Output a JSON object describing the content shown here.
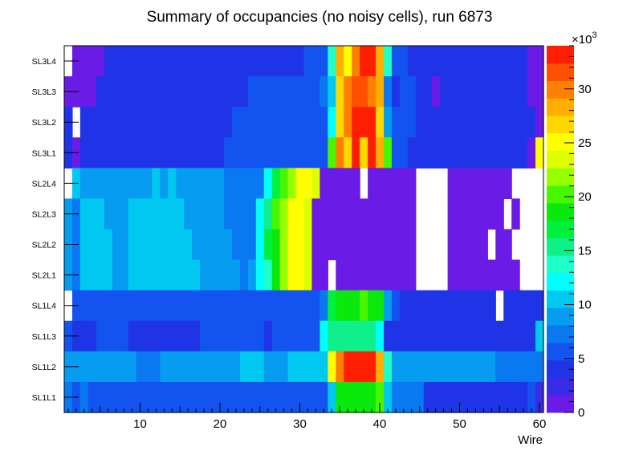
{
  "chart_data": {
    "type": "heatmap",
    "title": "Summary of occupancies (no noisy cells), run 6873",
    "xlabel": "Wire",
    "xlim": [
      0.5,
      60.5
    ],
    "x_ticks": [
      10,
      20,
      30,
      40,
      50,
      60
    ],
    "z_ticks": [
      0,
      5,
      10,
      15,
      20,
      25,
      30
    ],
    "z_multiplier": "×10",
    "z_multiplier_exp": "3",
    "zlim": [
      0,
      34
    ],
    "layers": [
      "SL3L4",
      "SL3L3",
      "SL3L2",
      "SL3L1",
      "SL2L4",
      "SL2L3",
      "SL2L2",
      "SL2L1",
      "SL1L4",
      "SL1L3",
      "SL1L2",
      "SL1L1"
    ],
    "palette": [
      "#6a1be6",
      "#3a2be6",
      "#1e34e6",
      "#1354f0",
      "#0a78f0",
      "#069cf0",
      "#00c8f0",
      "#00ffff",
      "#1fffc9",
      "#0ff08a",
      "#00f03e",
      "#0be80b",
      "#46f700",
      "#96ff00",
      "#ddff00",
      "#ffff00",
      "#ffd700",
      "#ffae00",
      "#ff8000",
      "#ff5000",
      "#ff1e00"
    ],
    "rows": [
      [
        -1,
        0,
        0,
        0,
        0,
        2,
        2,
        2,
        2,
        2,
        2,
        2,
        2,
        2,
        2,
        2,
        2,
        2,
        2,
        2,
        2,
        2,
        2,
        2,
        2,
        2,
        2,
        2,
        2,
        2,
        3,
        3,
        3,
        8,
        17,
        15,
        18,
        20,
        20,
        17,
        8,
        3,
        3,
        2,
        2,
        2,
        2,
        2,
        2,
        2,
        2,
        2,
        2,
        2,
        2,
        2,
        2,
        2,
        0,
        0
      ],
      [
        0,
        0,
        0,
        0,
        2,
        2,
        2,
        2,
        2,
        2,
        2,
        2,
        2,
        2,
        2,
        2,
        2,
        2,
        2,
        2,
        2,
        2,
        2,
        3,
        3,
        3,
        3,
        3,
        3,
        3,
        3,
        3,
        4,
        6,
        16,
        18,
        19,
        19,
        18,
        17,
        4,
        2,
        3,
        3,
        2,
        2,
        0,
        2,
        2,
        2,
        2,
        2,
        2,
        2,
        2,
        2,
        2,
        2,
        0,
        0
      ],
      [
        2,
        -1,
        2,
        2,
        2,
        2,
        2,
        2,
        2,
        2,
        2,
        2,
        2,
        2,
        2,
        2,
        2,
        2,
        2,
        2,
        2,
        3,
        3,
        3,
        3,
        3,
        3,
        3,
        3,
        3,
        3,
        3,
        3,
        7,
        16,
        18,
        20,
        20,
        20,
        16,
        5,
        3,
        3,
        3,
        2,
        2,
        2,
        2,
        2,
        2,
        2,
        2,
        2,
        2,
        2,
        2,
        2,
        2,
        2,
        0
      ],
      [
        2,
        0,
        2,
        2,
        2,
        2,
        2,
        2,
        2,
        2,
        2,
        2,
        2,
        2,
        2,
        2,
        2,
        2,
        2,
        2,
        3,
        3,
        3,
        3,
        3,
        3,
        3,
        3,
        3,
        3,
        3,
        3,
        3,
        12,
        18,
        16,
        20,
        16,
        20,
        17,
        12,
        3,
        3,
        2,
        2,
        2,
        2,
        2,
        2,
        2,
        2,
        2,
        2,
        2,
        2,
        2,
        2,
        2,
        0,
        15
      ],
      [
        -1,
        6,
        5,
        5,
        5,
        5,
        5,
        5,
        5,
        5,
        5,
        6,
        5,
        6,
        5,
        5,
        5,
        5,
        5,
        5,
        4,
        4,
        4,
        4,
        4,
        7,
        10,
        12,
        13,
        15,
        15,
        14,
        0,
        0,
        0,
        0,
        0,
        -1,
        0,
        0,
        0,
        0,
        0,
        0,
        -1,
        -1,
        -1,
        -1,
        0,
        0,
        0,
        0,
        0,
        0,
        0,
        0,
        -1,
        -1,
        -1,
        -1
      ],
      [
        5,
        4,
        6,
        6,
        6,
        5,
        5,
        5,
        6,
        6,
        6,
        6,
        6,
        6,
        6,
        5,
        5,
        5,
        5,
        5,
        4,
        4,
        4,
        4,
        7,
        9,
        12,
        13,
        15,
        15,
        14,
        0,
        0,
        0,
        0,
        0,
        0,
        0,
        0,
        0,
        0,
        0,
        0,
        0,
        -1,
        -1,
        -1,
        -1,
        0,
        0,
        0,
        0,
        0,
        0,
        0,
        -1,
        0,
        -1,
        -1,
        -1
      ],
      [
        5,
        4,
        6,
        6,
        6,
        6,
        5,
        5,
        6,
        6,
        6,
        6,
        6,
        6,
        6,
        6,
        5,
        5,
        5,
        5,
        5,
        4,
        4,
        4,
        7,
        10,
        11,
        13,
        15,
        15,
        14,
        0,
        0,
        0,
        0,
        0,
        0,
        0,
        0,
        0,
        0,
        0,
        0,
        0,
        -1,
        -1,
        -1,
        -1,
        0,
        0,
        0,
        0,
        0,
        -1,
        0,
        0,
        -1,
        -1,
        -1,
        -1
      ],
      [
        5,
        4,
        6,
        6,
        6,
        6,
        5,
        5,
        6,
        6,
        6,
        6,
        6,
        6,
        6,
        6,
        6,
        5,
        5,
        5,
        5,
        5,
        4,
        5,
        7,
        8,
        11,
        13,
        15,
        15,
        14,
        0,
        0,
        -1,
        0,
        0,
        0,
        0,
        0,
        0,
        0,
        0,
        0,
        0,
        -1,
        -1,
        -1,
        -1,
        0,
        0,
        0,
        0,
        0,
        0,
        0,
        0,
        0,
        -1,
        -1,
        -1
      ],
      [
        -1,
        3,
        3,
        3,
        3,
        3,
        3,
        3,
        3,
        3,
        3,
        3,
        3,
        3,
        3,
        3,
        3,
        3,
        3,
        3,
        3,
        3,
        3,
        3,
        3,
        3,
        3,
        3,
        3,
        3,
        3,
        3,
        4,
        10,
        11,
        11,
        11,
        12,
        11,
        11,
        5,
        3,
        2,
        2,
        2,
        2,
        2,
        2,
        2,
        2,
        2,
        2,
        2,
        2,
        -1,
        2,
        2,
        2,
        2,
        2
      ],
      [
        3,
        2,
        2,
        2,
        3,
        3,
        3,
        3,
        2,
        2,
        2,
        2,
        2,
        2,
        2,
        2,
        2,
        3,
        3,
        3,
        3,
        3,
        3,
        3,
        3,
        2,
        3,
        3,
        3,
        3,
        3,
        3,
        7,
        9,
        9,
        9,
        9,
        9,
        9,
        7,
        2,
        2,
        2,
        2,
        2,
        2,
        2,
        2,
        2,
        2,
        2,
        2,
        2,
        2,
        2,
        2,
        2,
        2,
        2,
        6
      ],
      [
        5,
        5,
        5,
        5,
        5,
        5,
        5,
        5,
        5,
        4,
        4,
        4,
        5,
        5,
        5,
        5,
        5,
        5,
        5,
        5,
        5,
        5,
        6,
        6,
        6,
        5,
        5,
        5,
        6,
        6,
        6,
        6,
        6,
        15,
        18,
        20,
        20,
        20,
        20,
        17,
        8,
        5,
        5,
        5,
        5,
        5,
        5,
        5,
        5,
        5,
        5,
        5,
        5,
        5,
        4,
        4,
        4,
        4,
        4,
        4
      ],
      [
        4,
        3,
        4,
        3,
        3,
        3,
        3,
        3,
        3,
        3,
        3,
        3,
        3,
        3,
        3,
        3,
        3,
        3,
        3,
        3,
        3,
        3,
        3,
        3,
        3,
        3,
        3,
        3,
        3,
        3,
        3,
        3,
        3,
        6,
        11,
        11,
        11,
        11,
        11,
        12,
        6,
        4,
        4,
        4,
        4,
        2,
        2,
        2,
        2,
        2,
        2,
        2,
        2,
        2,
        2,
        2,
        2,
        2,
        3,
        1
      ]
    ]
  }
}
